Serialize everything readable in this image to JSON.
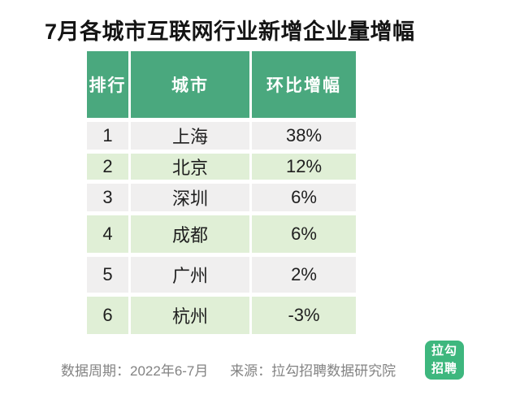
{
  "title": "7月各城市互联网行业新增企业量增幅",
  "table": {
    "headers": [
      "排行",
      "城市",
      "环比增幅"
    ],
    "rows": [
      {
        "rank": "1",
        "city": "上海",
        "growth": "38%"
      },
      {
        "rank": "2",
        "city": "北京",
        "growth": "12%"
      },
      {
        "rank": "3",
        "city": "深圳",
        "growth": "6%"
      },
      {
        "rank": "4",
        "city": "成都",
        "growth": "6%"
      },
      {
        "rank": "5",
        "city": "广州",
        "growth": "2%"
      },
      {
        "rank": "6",
        "city": "杭州",
        "growth": "-3%"
      }
    ]
  },
  "footer": {
    "period": "数据周期：2022年6-7月",
    "source": "来源：拉勾招聘数据研究院"
  },
  "logo": {
    "line1": "拉勾",
    "line2": "招聘"
  },
  "colors": {
    "header_green": "#4AA87E",
    "row_green": "#E0EFD6",
    "row_gray": "#F0EFEF",
    "logo_green": "#3EB77E",
    "footer_gray": "#838383"
  },
  "chart_data": {
    "type": "table",
    "title": "7月各城市互联网行业新增企业量增幅",
    "columns": [
      "排行",
      "城市",
      "环比增幅"
    ],
    "rows": [
      [
        1,
        "上海",
        "38%"
      ],
      [
        2,
        "北京",
        "12%"
      ],
      [
        3,
        "深圳",
        "6%"
      ],
      [
        4,
        "成都",
        "6%"
      ],
      [
        5,
        "广州",
        "2%"
      ],
      [
        6,
        "杭州",
        "-3%"
      ]
    ],
    "source": "拉勾招聘数据研究院",
    "period": "2022年6-7月"
  }
}
